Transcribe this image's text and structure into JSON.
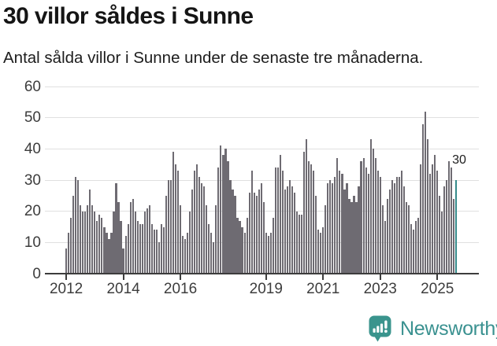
{
  "header": {
    "title": "30 villor såldes i Sunne",
    "subtitle": "Antal sålda villor i Sunne under de senaste tre månaderna."
  },
  "chart_data": {
    "type": "bar",
    "title": "30 villor såldes i Sunne",
    "subtitle": "Antal sålda villor i Sunne under de senaste tre månaderna.",
    "x_start_month": "2012-01",
    "x_end_month": "2025-09",
    "values": [
      8,
      13,
      18,
      25,
      31,
      30,
      22,
      20,
      20,
      22,
      27,
      22,
      20,
      17,
      19,
      18,
      15,
      13,
      11,
      13,
      20,
      29,
      23,
      17,
      8,
      12,
      16,
      23,
      24,
      20,
      17,
      16,
      16,
      20,
      21,
      22,
      16,
      14,
      14,
      10,
      16,
      15,
      25,
      30,
      30,
      39,
      35,
      33,
      22,
      12,
      11,
      13,
      20,
      27,
      33,
      35,
      31,
      29,
      28,
      22,
      16,
      13,
      10,
      22,
      34,
      41,
      38,
      40,
      36,
      30,
      27,
      25,
      18,
      17,
      15,
      13,
      18,
      26,
      33,
      26,
      25,
      27,
      29,
      23,
      13,
      12,
      13,
      18,
      34,
      34,
      38,
      33,
      27,
      28,
      30,
      28,
      26,
      20,
      19,
      19,
      39,
      43,
      36,
      35,
      33,
      25,
      14,
      13,
      15,
      22,
      29,
      30,
      29,
      31,
      37,
      33,
      32,
      27,
      29,
      24,
      23,
      25,
      23,
      28,
      36,
      37,
      34,
      32,
      43,
      40,
      37,
      33,
      31,
      22,
      17,
      24,
      27,
      30,
      29,
      31,
      31,
      33,
      28,
      23,
      22,
      16,
      14,
      17,
      18,
      35,
      48,
      52,
      43,
      32,
      35,
      38,
      33,
      25,
      20,
      28,
      30,
      36,
      34,
      24,
      30
    ],
    "highlight_last": true,
    "last_value": 30,
    "annotation": {
      "text": "30"
    },
    "y_ticks": [
      0,
      10,
      20,
      30,
      40,
      50,
      60
    ],
    "ylim": [
      0,
      60
    ],
    "x_tick_years": [
      2012,
      2014,
      2016,
      2019,
      2021,
      2023,
      2025
    ],
    "x_tick_labels": [
      "2012",
      "2014",
      "2016",
      "2019",
      "2021",
      "2023",
      "2025"
    ],
    "grid": "horizontal",
    "legend": "none",
    "colors": {
      "bar": "#6e6b72",
      "highlight": "#358b8b",
      "gridline": "#e0e0e0",
      "axis": "#3c3c3c",
      "axis_text": "#3d3d3d"
    }
  },
  "footer": {
    "brand": "Newsworthy",
    "brand_color": "#3a9190",
    "logo_icon": "bar-chart-speech-bubble"
  }
}
